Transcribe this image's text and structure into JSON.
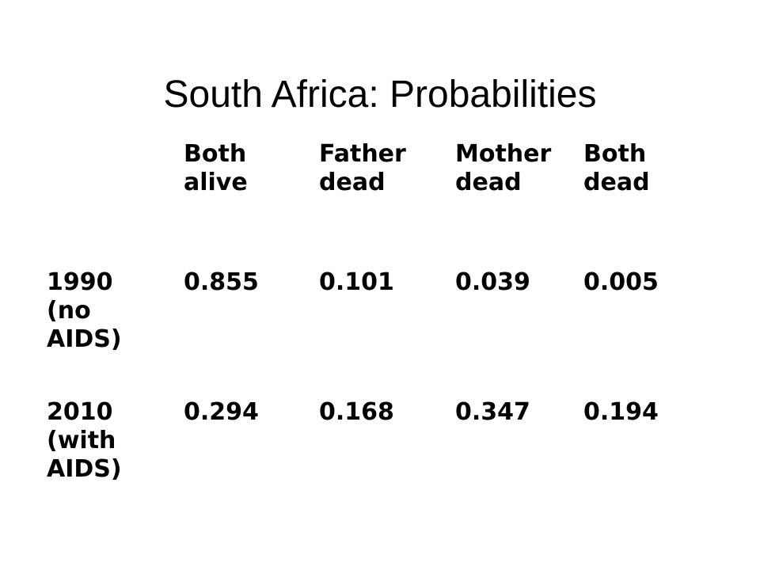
{
  "slide": {
    "title": "South Africa: Probabilities"
  },
  "table": {
    "columns": [
      "Both\nalive",
      "Father\ndead",
      "Mother\ndead",
      "Both\ndead"
    ],
    "rows": [
      {
        "label": "1990\n(no\nAIDS)",
        "values": [
          "0.855",
          "0.101",
          "0.039",
          "0.005"
        ]
      },
      {
        "label": "2010\n(with\nAIDS)",
        "values": [
          "0.294",
          "0.168",
          "0.347",
          "0.194"
        ]
      }
    ]
  }
}
